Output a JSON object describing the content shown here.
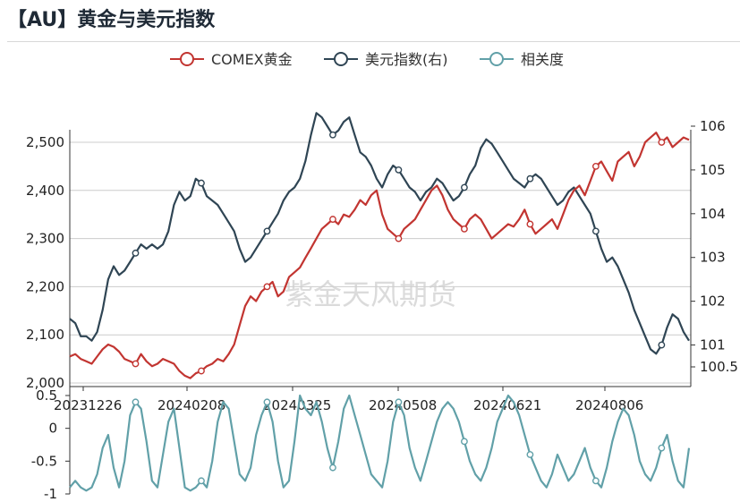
{
  "header": {
    "title": "【AU】黄金与美元指数"
  },
  "watermark": "紫金天风期货",
  "colors": {
    "gold": "#c23531",
    "usd": "#2f4554",
    "corr": "#61a0a8",
    "grid": "#cccccc"
  },
  "chart_data": {
    "type": "line",
    "legend": {
      "position": "top-center",
      "items": [
        "COMEX黄金",
        "美元指数(右)",
        "相关度"
      ]
    },
    "x_tick_labels": [
      "20231226",
      "20240208",
      "20240325",
      "20240508",
      "20240621",
      "20240806"
    ],
    "price_panel": {
      "left_axis": {
        "min": 2000,
        "max": 2500,
        "ticks": [
          "2,000",
          "2,100",
          "2,200",
          "2,300",
          "2,400",
          "2,500"
        ]
      },
      "right_axis": {
        "min": 100.5,
        "max": 106,
        "ticks": [
          "100.5",
          "101",
          "102",
          "103",
          "104",
          "105",
          "106"
        ]
      },
      "series": [
        {
          "name": "COMEX黄金",
          "axis": "left",
          "values": [
            2055,
            2060,
            2050,
            2045,
            2040,
            2055,
            2070,
            2080,
            2075,
            2065,
            2050,
            2045,
            2040,
            2060,
            2045,
            2035,
            2040,
            2050,
            2045,
            2040,
            2025,
            2015,
            2010,
            2020,
            2025,
            2035,
            2040,
            2050,
            2045,
            2060,
            2080,
            2120,
            2160,
            2180,
            2170,
            2190,
            2200,
            2210,
            2180,
            2190,
            2220,
            2230,
            2240,
            2260,
            2280,
            2300,
            2320,
            2330,
            2340,
            2330,
            2350,
            2345,
            2360,
            2380,
            2370,
            2390,
            2400,
            2350,
            2320,
            2310,
            2300,
            2320,
            2330,
            2340,
            2360,
            2380,
            2400,
            2410,
            2390,
            2360,
            2340,
            2330,
            2320,
            2340,
            2350,
            2340,
            2320,
            2300,
            2310,
            2320,
            2330,
            2325,
            2340,
            2360,
            2330,
            2310,
            2320,
            2330,
            2340,
            2320,
            2350,
            2380,
            2400,
            2410,
            2390,
            2420,
            2450,
            2460,
            2440,
            2420,
            2460,
            2470,
            2480,
            2450,
            2470,
            2500,
            2510,
            2520,
            2500,
            2510,
            2490,
            2500,
            2510,
            2505
          ]
        },
        {
          "name": "美元指数(右)",
          "axis": "right",
          "values": [
            101.6,
            101.5,
            101.2,
            101.2,
            101.1,
            101.3,
            101.8,
            102.5,
            102.8,
            102.6,
            102.7,
            102.9,
            103.1,
            103.3,
            103.2,
            103.3,
            103.2,
            103.3,
            103.6,
            104.2,
            104.5,
            104.3,
            104.4,
            104.8,
            104.7,
            104.4,
            104.3,
            104.2,
            104.0,
            103.8,
            103.6,
            103.2,
            102.9,
            103.0,
            103.2,
            103.4,
            103.6,
            103.8,
            104.0,
            104.3,
            104.5,
            104.6,
            104.8,
            105.2,
            105.8,
            106.3,
            106.2,
            106.0,
            105.8,
            105.9,
            106.1,
            106.2,
            105.8,
            105.4,
            105.3,
            105.1,
            104.8,
            104.6,
            104.9,
            105.1,
            105.0,
            104.8,
            104.6,
            104.5,
            104.3,
            104.5,
            104.6,
            104.8,
            104.7,
            104.5,
            104.3,
            104.4,
            104.6,
            104.9,
            105.1,
            105.5,
            105.7,
            105.6,
            105.4,
            105.2,
            105.0,
            104.8,
            104.7,
            104.6,
            104.8,
            104.9,
            104.8,
            104.6,
            104.4,
            104.2,
            104.3,
            104.5,
            104.6,
            104.4,
            104.2,
            104.0,
            103.6,
            103.2,
            102.9,
            103.0,
            102.8,
            102.5,
            102.2,
            101.8,
            101.5,
            101.2,
            100.9,
            100.8,
            101.0,
            101.4,
            101.7,
            101.6,
            101.3,
            101.1
          ]
        }
      ]
    },
    "corr_panel": {
      "axis": {
        "min": -1,
        "max": 0.5,
        "ticks": [
          "0.5",
          "0",
          "-0.5",
          "-1"
        ]
      },
      "series": {
        "name": "相关度",
        "values": [
          -0.9,
          -0.8,
          -0.9,
          -0.95,
          -0.9,
          -0.7,
          -0.3,
          -0.1,
          -0.6,
          -0.9,
          -0.5,
          0.2,
          0.4,
          0.3,
          -0.2,
          -0.8,
          -0.9,
          -0.4,
          0.1,
          0.3,
          -0.3,
          -0.9,
          -0.95,
          -0.9,
          -0.8,
          -0.9,
          -0.5,
          0.1,
          0.4,
          0.3,
          -0.2,
          -0.7,
          -0.8,
          -0.6,
          -0.1,
          0.2,
          0.4,
          0.1,
          -0.5,
          -0.9,
          -0.8,
          -0.2,
          0.5,
          0.3,
          0.2,
          0.4,
          0.1,
          -0.3,
          -0.6,
          -0.2,
          0.3,
          0.5,
          0.2,
          -0.1,
          -0.4,
          -0.7,
          -0.8,
          -0.9,
          -0.5,
          0.1,
          0.4,
          0.2,
          -0.3,
          -0.6,
          -0.8,
          -0.5,
          -0.2,
          0.1,
          0.3,
          0.4,
          0.3,
          0.1,
          -0.2,
          -0.5,
          -0.7,
          -0.8,
          -0.6,
          -0.3,
          0.1,
          0.3,
          0.5,
          0.4,
          0.2,
          -0.1,
          -0.4,
          -0.6,
          -0.8,
          -0.9,
          -0.7,
          -0.4,
          -0.6,
          -0.8,
          -0.7,
          -0.5,
          -0.3,
          -0.6,
          -0.8,
          -0.9,
          -0.6,
          -0.2,
          0.1,
          0.3,
          0.2,
          -0.1,
          -0.5,
          -0.7,
          -0.8,
          -0.6,
          -0.3,
          -0.1,
          -0.5,
          -0.8,
          -0.9,
          -0.3
        ]
      }
    },
    "marker_every": 12
  }
}
